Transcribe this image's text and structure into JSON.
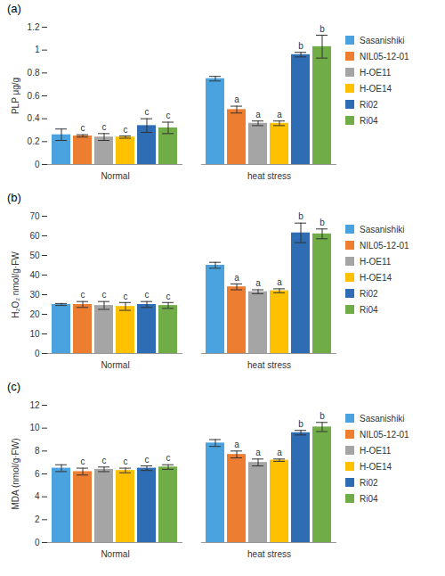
{
  "chart_data": [
    {
      "type": "bar",
      "title": "(a)",
      "y_label": "PLP μg/g",
      "categories": [
        "Normal",
        "heat stress"
      ],
      "ylim": [
        0,
        1.2
      ],
      "yticks": [
        0,
        0.2,
        0.4,
        0.6,
        0.8,
        1,
        1.2
      ],
      "grid": false,
      "legend": "right",
      "series": [
        {
          "name": "Sasanishiki",
          "color": "#4aa3df",
          "values": [
            0.26,
            0.75
          ],
          "errors": [
            0.05,
            0.02
          ],
          "significance": [
            null,
            null
          ]
        },
        {
          "name": "NIL05-12-01",
          "color": "#ed7d31",
          "values": [
            0.25,
            0.48
          ],
          "errors": [
            0.01,
            0.03
          ],
          "significance": [
            "c",
            "a"
          ]
        },
        {
          "name": "H-OE11",
          "color": "#a5a5a5",
          "values": [
            0.24,
            0.36
          ],
          "errors": [
            0.03,
            0.02
          ],
          "significance": [
            "c",
            "a"
          ]
        },
        {
          "name": "H-OE14",
          "color": "#ffc000",
          "values": [
            0.24,
            0.36
          ],
          "errors": [
            0.01,
            0.02
          ],
          "significance": [
            "c",
            "a"
          ]
        },
        {
          "name": "Ri02",
          "color": "#2e6db4",
          "values": [
            0.34,
            0.96
          ],
          "errors": [
            0.06,
            0.02
          ],
          "significance": [
            "c",
            "b"
          ]
        },
        {
          "name": "Ri04",
          "color": "#70ad47",
          "values": [
            0.32,
            1.03
          ],
          "errors": [
            0.05,
            0.1
          ],
          "significance": [
            "c",
            "b"
          ]
        }
      ]
    },
    {
      "type": "bar",
      "title": "(b)",
      "y_label": "H₂O₂ nmol/g·FW",
      "categories": [
        "Normal",
        "heat stress"
      ],
      "ylim": [
        0,
        70
      ],
      "yticks": [
        0,
        10,
        20,
        30,
        40,
        50,
        60,
        70
      ],
      "grid": false,
      "legend": "right",
      "series": [
        {
          "name": "Sasanishiki",
          "color": "#4aa3df",
          "values": [
            25,
            45
          ],
          "errors": [
            0.5,
            1.5
          ],
          "significance": [
            null,
            null
          ]
        },
        {
          "name": "NIL05-12-01",
          "color": "#ed7d31",
          "values": [
            25,
            34
          ],
          "errors": [
            1.5,
            1.5
          ],
          "significance": [
            "c",
            "a"
          ]
        },
        {
          "name": "H-OE11",
          "color": "#a5a5a5",
          "values": [
            24.5,
            31.5
          ],
          "errors": [
            2,
            1
          ],
          "significance": [
            "c",
            "a"
          ]
        },
        {
          "name": "H-OE14",
          "color": "#ffc000",
          "values": [
            24,
            32
          ],
          "errors": [
            2,
            1
          ],
          "significance": [
            "c",
            "a"
          ]
        },
        {
          "name": "Ri02",
          "color": "#2e6db4",
          "values": [
            25,
            61.5
          ],
          "errors": [
            1.5,
            5
          ],
          "significance": [
            "c",
            "b"
          ]
        },
        {
          "name": "Ri04",
          "color": "#70ad47",
          "values": [
            24.5,
            61
          ],
          "errors": [
            1.5,
            2.5
          ],
          "significance": [
            "c",
            "b"
          ]
        }
      ]
    },
    {
      "type": "bar",
      "title": "(c)",
      "y_label": "MDA (nmol/g·FW)",
      "categories": [
        "Normal",
        "heat stress"
      ],
      "ylim": [
        0,
        12
      ],
      "yticks": [
        0,
        2,
        4,
        6,
        8,
        10,
        12
      ],
      "grid": false,
      "legend": "right",
      "series": [
        {
          "name": "Sasanishiki",
          "color": "#4aa3df",
          "values": [
            6.5,
            8.7
          ],
          "errors": [
            0.3,
            0.3
          ],
          "significance": [
            null,
            null
          ]
        },
        {
          "name": "NIL05-12-01",
          "color": "#ed7d31",
          "values": [
            6.2,
            7.7
          ],
          "errors": [
            0.3,
            0.3
          ],
          "significance": [
            "c",
            "a"
          ]
        },
        {
          "name": "H-OE11",
          "color": "#a5a5a5",
          "values": [
            6.4,
            7.0
          ],
          "errors": [
            0.2,
            0.3
          ],
          "significance": [
            "c",
            "a"
          ]
        },
        {
          "name": "H-OE14",
          "color": "#ffc000",
          "values": [
            6.3,
            7.2
          ],
          "errors": [
            0.2,
            0.1
          ],
          "significance": [
            "c",
            "a"
          ]
        },
        {
          "name": "Ri02",
          "color": "#2e6db4",
          "values": [
            6.5,
            9.6
          ],
          "errors": [
            0.2,
            0.2
          ],
          "significance": [
            "c",
            "b"
          ]
        },
        {
          "name": "Ri04",
          "color": "#70ad47",
          "values": [
            6.6,
            10.1
          ],
          "errors": [
            0.2,
            0.4
          ],
          "significance": [
            "c",
            "b"
          ]
        }
      ]
    }
  ]
}
